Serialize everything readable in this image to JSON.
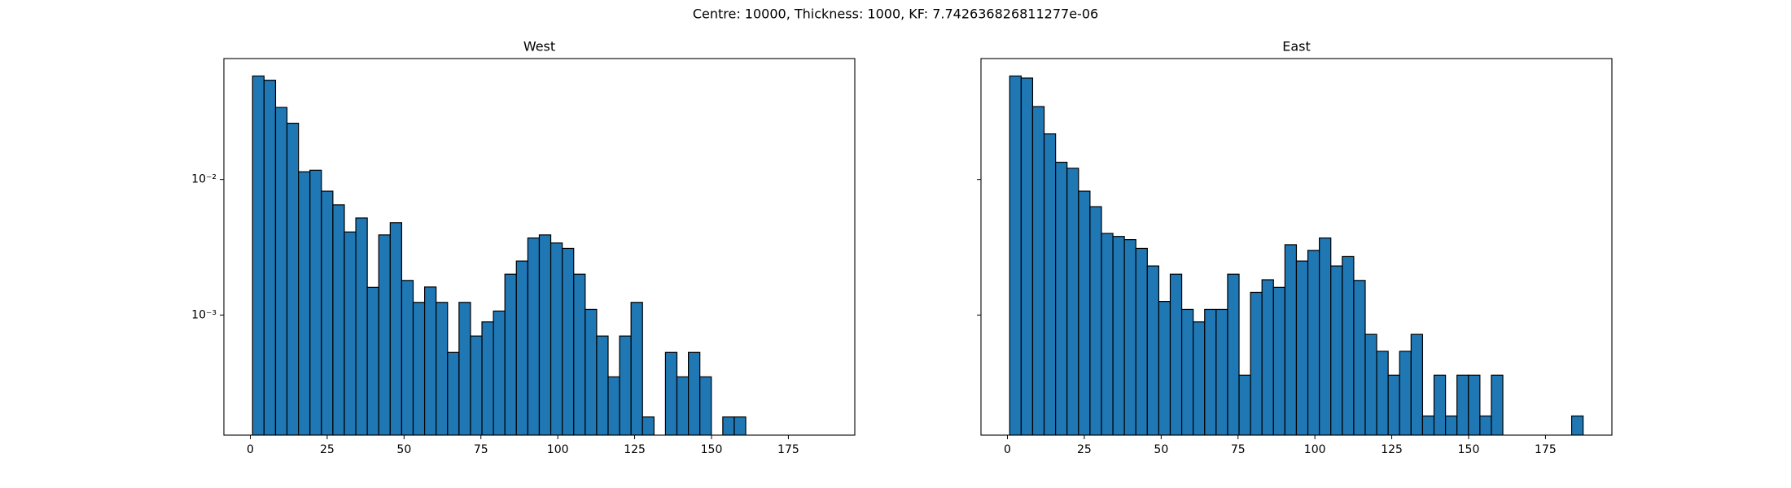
{
  "title": "Centre: 10000, Thickness: 1000, KF: 7.742636826811277e-06",
  "chart_data": [
    {
      "type": "histogram",
      "title": "West",
      "color": "#1f77b4",
      "log_y": true,
      "bins": [
        0.74,
        4.47,
        8.2,
        11.93,
        15.66,
        19.39,
        23.12,
        26.85,
        30.58,
        34.31,
        38.04,
        41.77,
        45.5,
        49.23,
        52.96,
        56.69,
        60.42,
        64.15,
        67.88,
        71.61,
        75.34,
        79.07,
        82.8,
        86.53,
        90.26,
        93.99,
        97.72,
        101.45,
        105.18,
        108.91,
        112.64,
        116.37,
        120.1,
        123.83,
        127.56,
        131.29,
        135.02,
        138.75,
        142.48,
        146.21,
        149.94,
        153.67,
        157.4,
        161.13,
        164.86,
        168.59,
        172.32,
        176.05,
        179.78,
        183.51,
        187.24
      ],
      "values": [
        0.058,
        0.054,
        0.034,
        0.026,
        0.0114,
        0.0117,
        0.0082,
        0.0065,
        0.0041,
        0.0052,
        0.0016,
        0.0039,
        0.0048,
        0.0018,
        0.00124,
        0.00161,
        0.00124,
        0.00053,
        0.00124,
        0.0007,
        0.00089,
        0.00107,
        0.002,
        0.0025,
        0.0037,
        0.0039,
        0.0034,
        0.0031,
        0.002,
        0.0011,
        0.0007,
        0.00035,
        0.0007,
        0.00124,
        0.000177,
        0,
        0.00053,
        0.00035,
        0.00053,
        0.00035,
        0,
        0.000177,
        0.000177,
        0,
        0,
        0,
        0,
        0,
        0,
        0
      ],
      "xlim": [
        -8.6,
        196.6
      ],
      "xticks": [
        0,
        25,
        50,
        75,
        100,
        125,
        150,
        175
      ],
      "ylim": [
        0.00013,
        0.078
      ],
      "yticks": [
        {
          "value": 0.001,
          "label": "10⁻³"
        },
        {
          "value": 0.01,
          "label": "10⁻²"
        }
      ]
    },
    {
      "type": "histogram",
      "title": "East",
      "color": "#1f77b4",
      "log_y": true,
      "sharey": true,
      "bins": [
        0.74,
        4.47,
        8.2,
        11.93,
        15.66,
        19.39,
        23.12,
        26.85,
        30.58,
        34.31,
        38.04,
        41.77,
        45.5,
        49.23,
        52.96,
        56.69,
        60.42,
        64.15,
        67.88,
        71.61,
        75.34,
        79.07,
        82.8,
        86.53,
        90.26,
        93.99,
        97.72,
        101.45,
        105.18,
        108.91,
        112.64,
        116.37,
        120.1,
        123.83,
        127.56,
        131.29,
        135.02,
        138.75,
        142.48,
        146.21,
        149.94,
        153.67,
        157.4,
        161.13,
        164.86,
        168.59,
        172.32,
        176.05,
        179.78,
        183.51,
        187.24
      ],
      "values": [
        0.058,
        0.056,
        0.0345,
        0.0217,
        0.0134,
        0.0121,
        0.0082,
        0.0063,
        0.004,
        0.0038,
        0.0036,
        0.0031,
        0.0023,
        0.00126,
        0.002,
        0.0011,
        0.00089,
        0.0011,
        0.0011,
        0.002,
        0.00036,
        0.00147,
        0.00182,
        0.0016,
        0.0033,
        0.0025,
        0.003,
        0.0037,
        0.0023,
        0.0027,
        0.0018,
        0.00072,
        0.00054,
        0.00036,
        0.00054,
        0.00072,
        0.00018,
        0.00036,
        0.00018,
        0.00036,
        0.00036,
        0.00018,
        0.00036,
        0,
        0,
        0,
        0,
        0,
        0,
        0.00018
      ],
      "xlim": [
        -8.6,
        196.6
      ],
      "xticks": [
        0,
        25,
        50,
        75,
        100,
        125,
        150,
        175
      ],
      "ylim": [
        0.00013,
        0.078
      ]
    }
  ]
}
